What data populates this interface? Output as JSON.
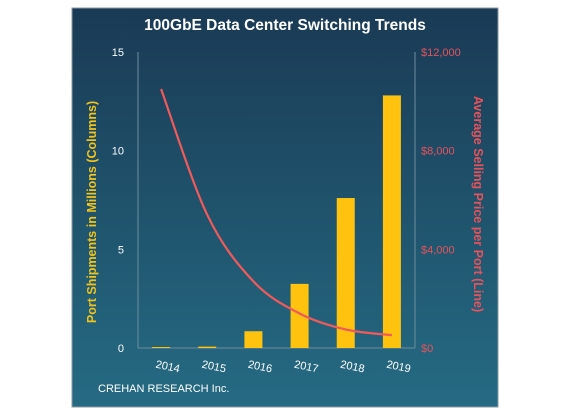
{
  "chart_data": {
    "type": "bar+line",
    "title": "100GbE Data Center Switching Trends",
    "categories": [
      "2014",
      "2015",
      "2016",
      "2017",
      "2018",
      "2019"
    ],
    "series": [
      {
        "values": [
          0.05,
          0.07,
          0.85,
          3.25,
          7.6,
          12.8
        ]
      },
      {
        "values": [
          10500,
          5400,
          2700,
          1400,
          750,
          520
        ]
      }
    ],
    "ylabel_left": "Port Shipments in Millions (Columns)",
    "ylabel_right": "Average Selling Price per Port (Line)",
    "ylim_left": [
      0,
      15
    ],
    "ylim_right": [
      0,
      12000
    ],
    "yticks_left": [
      "0",
      "5",
      "10",
      "15"
    ],
    "yticks_right": [
      "$0",
      "$4,000",
      "$8,000",
      "$12,000"
    ],
    "grid": false,
    "legend": "none",
    "source": "CREHAN RESEARCH Inc.",
    "colors": {
      "background_top": "#1a3a55",
      "background_bottom": "#256b83",
      "bars": "#ffc20e",
      "line": "#f05a5a",
      "left_axis_text": "#f2c31a",
      "right_axis_text": "#e8525a",
      "title": "#ffffff",
      "ticks": "#ffffff"
    }
  }
}
